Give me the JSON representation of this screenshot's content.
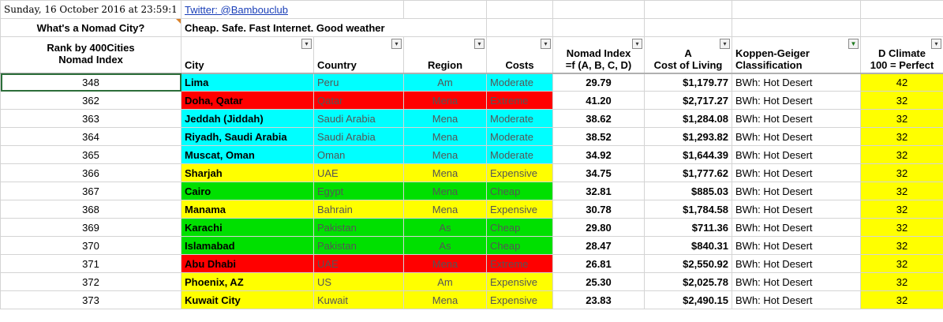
{
  "top": {
    "datetime": "Sunday, 16 October 2016 at 23:59:1",
    "twitter": "Twitter: @Bambouclub",
    "question": "What's a Nomad City?",
    "tagline": "Cheap. Safe. Fast Internet. Good weather"
  },
  "headers": {
    "rank": "Rank by 400Cities",
    "rank2": "Nomad Index",
    "city": "City",
    "country": "Country",
    "region": "Region",
    "costs": "Costs",
    "nomad": "Nomad Index",
    "nomad2": "=f (A, B, C, D)",
    "cost_a": "A",
    "cost_a2": "Cost of Living",
    "koppen": "Koppen-Geiger",
    "koppen2": "Classification",
    "climate": "D  Climate",
    "climate2": "100 = Perfect"
  },
  "colors": {
    "cyan": "#00ffff",
    "red": "#ff0000",
    "yellow": "#ffff00",
    "green": "#00e000"
  },
  "rows": [
    {
      "rank": "348",
      "city": "Lima",
      "country": "Peru",
      "region": "Am",
      "costs": "Moderate",
      "nomad": "29.79",
      "cost": "$1,179.77",
      "koppen": "BWh: Hot Desert",
      "climate": "42",
      "color": "cyan"
    },
    {
      "rank": "362",
      "city": "Doha, Qatar",
      "country": "Qatar",
      "region": "Mena",
      "costs": "Extreme",
      "nomad": "41.20",
      "cost": "$2,717.27",
      "koppen": "BWh: Hot Desert",
      "climate": "32",
      "color": "red"
    },
    {
      "rank": "363",
      "city": "Jeddah (Jiddah)",
      "country": "Saudi Arabia",
      "region": "Mena",
      "costs": "Moderate",
      "nomad": "38.62",
      "cost": "$1,284.08",
      "koppen": "BWh: Hot Desert",
      "climate": "32",
      "color": "cyan"
    },
    {
      "rank": "364",
      "city": "Riyadh, Saudi Arabia",
      "country": "Saudi Arabia",
      "region": "Mena",
      "costs": "Moderate",
      "nomad": "38.52",
      "cost": "$1,293.82",
      "koppen": "BWh: Hot Desert",
      "climate": "32",
      "color": "cyan"
    },
    {
      "rank": "365",
      "city": "Muscat, Oman",
      "country": "Oman",
      "region": "Mena",
      "costs": "Moderate",
      "nomad": "34.92",
      "cost": "$1,644.39",
      "koppen": "BWh: Hot Desert",
      "climate": "32",
      "color": "cyan"
    },
    {
      "rank": "366",
      "city": "Sharjah",
      "country": "UAE",
      "region": "Mena",
      "costs": "Expensive",
      "nomad": "34.75",
      "cost": "$1,777.62",
      "koppen": "BWh: Hot Desert",
      "climate": "32",
      "color": "yellow"
    },
    {
      "rank": "367",
      "city": "Cairo",
      "country": "Egypt",
      "region": "Mena",
      "costs": "Cheap",
      "nomad": "32.81",
      "cost": "$885.03",
      "koppen": "BWh: Hot Desert",
      "climate": "32",
      "color": "green"
    },
    {
      "rank": "368",
      "city": "Manama",
      "country": "Bahrain",
      "region": "Mena",
      "costs": "Expensive",
      "nomad": "30.78",
      "cost": "$1,784.58",
      "koppen": "BWh: Hot Desert",
      "climate": "32",
      "color": "yellow"
    },
    {
      "rank": "369",
      "city": "Karachi",
      "country": "Pakistan",
      "region": "As",
      "costs": "Cheap",
      "nomad": "29.80",
      "cost": "$711.36",
      "koppen": "BWh: Hot Desert",
      "climate": "32",
      "color": "green"
    },
    {
      "rank": "370",
      "city": "Islamabad",
      "country": "Pakistan",
      "region": "As",
      "costs": "Cheap",
      "nomad": "28.47",
      "cost": "$840.31",
      "koppen": "BWh: Hot Desert",
      "climate": "32",
      "color": "green"
    },
    {
      "rank": "371",
      "city": "Abu Dhabi",
      "country": "UAE",
      "region": "Mena",
      "costs": "Extreme",
      "nomad": "26.81",
      "cost": "$2,550.92",
      "koppen": "BWh: Hot Desert",
      "climate": "32",
      "color": "red"
    },
    {
      "rank": "372",
      "city": "Phoenix, AZ",
      "country": "US",
      "region": "Am",
      "costs": "Expensive",
      "nomad": "25.30",
      "cost": "$2,025.78",
      "koppen": "BWh: Hot Desert",
      "climate": "32",
      "color": "yellow"
    },
    {
      "rank": "373",
      "city": "Kuwait City",
      "country": "Kuwait",
      "region": "Mena",
      "costs": "Expensive",
      "nomad": "23.83",
      "cost": "$2,490.15",
      "koppen": "BWh: Hot Desert",
      "climate": "32",
      "color": "yellow"
    }
  ]
}
